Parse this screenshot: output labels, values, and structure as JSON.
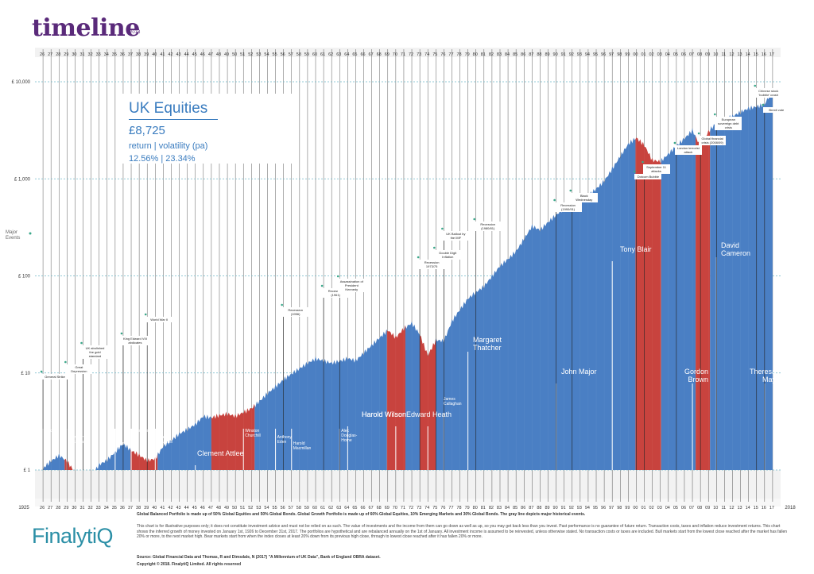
{
  "header": {
    "logo": "timeline",
    "logo_year": "2018"
  },
  "info": {
    "title": "UK Equities",
    "amount": "£8,725",
    "subtitle": "return | volatility (pa)",
    "values": "12.56% | 23.34%"
  },
  "major_events_label": "Major Events",
  "colors": {
    "bull": "#4a7fc4",
    "bear": "#c8433e",
    "grid": "#6fb8c8",
    "event": "#3aa88a"
  },
  "chart_data": {
    "type": "area",
    "title": "UK Equities",
    "xlabel": "",
    "ylabel": "",
    "yscale": "log",
    "ylim": [
      1,
      10000
    ],
    "xlim": [
      1925,
      2018
    ],
    "ytick_labels": [
      "£ 1",
      "£ 10",
      "£ 100",
      "£ 1,000",
      "£ 10,000"
    ],
    "ytick_values": [
      1,
      10,
      100,
      1000,
      10000
    ],
    "xtick_labels": [
      "26",
      "27",
      "28",
      "29",
      "30",
      "31",
      "32",
      "33",
      "34",
      "35",
      "36",
      "37",
      "38",
      "39",
      "40",
      "41",
      "42",
      "43",
      "44",
      "45",
      "46",
      "47",
      "48",
      "49",
      "50",
      "51",
      "52",
      "53",
      "54",
      "55",
      "56",
      "57",
      "58",
      "59",
      "60",
      "61",
      "62",
      "63",
      "64",
      "65",
      "66",
      "67",
      "68",
      "69",
      "70",
      "71",
      "72",
      "73",
      "74",
      "75",
      "76",
      "77",
      "78",
      "79",
      "80",
      "81",
      "82",
      "83",
      "84",
      "85",
      "86",
      "87",
      "88",
      "89",
      "90",
      "91",
      "92",
      "93",
      "94",
      "95",
      "96",
      "97",
      "98",
      "99",
      "00",
      "01",
      "02",
      "03",
      "04",
      "05",
      "06",
      "07",
      "08",
      "09",
      "10",
      "11",
      "12",
      "13",
      "14",
      "15",
      "16",
      "17"
    ],
    "bottom_start_label": "1925",
    "bottom_end_label": "2018",
    "x": [
      1926,
      1928,
      1929,
      1930,
      1931,
      1932,
      1933,
      1934,
      1936,
      1937,
      1939,
      1940,
      1941,
      1943,
      1945,
      1946,
      1947,
      1949,
      1950,
      1952,
      1954,
      1956,
      1958,
      1960,
      1962,
      1964,
      1965,
      1968,
      1969,
      1970,
      1971,
      1972,
      1973,
      1974,
      1975,
      1976,
      1977,
      1979,
      1981,
      1983,
      1985,
      1987,
      1988,
      1990,
      1992,
      1994,
      1996,
      1998,
      1999,
      2000,
      2001,
      2002,
      2003,
      2005,
      2007,
      2008,
      2009,
      2010,
      2012,
      2014,
      2016,
      2017
    ],
    "y": [
      1.0,
      1.35,
      1.2,
      0.95,
      0.85,
      0.9,
      1.2,
      1.3,
      1.8,
      1.5,
      1.2,
      1.3,
      1.8,
      2.5,
      3.0,
      3.5,
      3.3,
      3.6,
      3.5,
      4.5,
      6.5,
      8.5,
      10.5,
      13.5,
      13,
      15,
      14,
      22,
      26,
      22,
      28,
      33,
      26,
      16,
      23,
      22,
      34,
      55,
      75,
      130,
      190,
      330,
      290,
      400,
      560,
      700,
      1000,
      1700,
      2200,
      2500,
      2100,
      1500,
      1500,
      2300,
      3300,
      2200,
      3000,
      3600,
      4200,
      5400,
      6200,
      8725
    ],
    "periods": [
      {
        "start": 1925.0,
        "end": 1928.7,
        "type": "bull"
      },
      {
        "start": 1928.7,
        "end": 1931.8,
        "type": "bear"
      },
      {
        "start": 1931.8,
        "end": 1936.9,
        "type": "bull"
      },
      {
        "start": 1936.9,
        "end": 1940.3,
        "type": "bear"
      },
      {
        "start": 1940.3,
        "end": 1947.0,
        "type": "bull"
      },
      {
        "start": 1947.0,
        "end": 1952.4,
        "type": "bear"
      },
      {
        "start": 1952.4,
        "end": 1968.9,
        "type": "bull"
      },
      {
        "start": 1968.9,
        "end": 1971.2,
        "type": "bear"
      },
      {
        "start": 1971.2,
        "end": 1973.0,
        "type": "bull"
      },
      {
        "start": 1973.0,
        "end": 1975.0,
        "type": "bear"
      },
      {
        "start": 1975.0,
        "end": 1999.9,
        "type": "bull"
      },
      {
        "start": 1999.9,
        "end": 2003.1,
        "type": "bear"
      },
      {
        "start": 2003.1,
        "end": 2007.4,
        "type": "bull"
      },
      {
        "start": 2007.4,
        "end": 2009.2,
        "type": "bear"
      },
      {
        "start": 2009.2,
        "end": 2018.0,
        "type": "bull"
      }
    ]
  },
  "prime_ministers": [
    {
      "name": "Baldwin",
      "year": 1926
    },
    {
      "name": "Ramsay MacDonald",
      "year": 1929
    },
    {
      "name": "Baldwin",
      "year": 1935
    },
    {
      "name": "Chamberlain",
      "year": 1937
    },
    {
      "name": "Winston Churchill",
      "year": 1940
    },
    {
      "name": "Clement Attlee",
      "year": 1945
    },
    {
      "name": "Winston Churchill",
      "year": 1951
    },
    {
      "name": "Anthony Eden",
      "year": 1955
    },
    {
      "name": "Harold Macmillan",
      "year": 1957
    },
    {
      "name": "Alec Douglas-Home",
      "year": 1963
    },
    {
      "name": "Harold Wilson",
      "year": 1964
    },
    {
      "name": "Edward Heath",
      "year": 1970
    },
    {
      "name": "Harold Wilson",
      "year": 1974
    },
    {
      "name": "James Callaghan",
      "year": 1976
    },
    {
      "name": "Margaret Thatcher",
      "year": 1979
    },
    {
      "name": "John Major",
      "year": 1990
    },
    {
      "name": "Tony Blair",
      "year": 1997
    },
    {
      "name": "Gordon Brown",
      "year": 2007
    },
    {
      "name": "David Cameron",
      "year": 2010
    },
    {
      "name": "Theresa May",
      "year": 2016
    }
  ],
  "events": [
    {
      "label": "General Strike",
      "year": 1926
    },
    {
      "label": "Great Depression",
      "year": 1929
    },
    {
      "label": "UK abolished the gold standard",
      "year": 1931
    },
    {
      "label": "King Edward VIII abdicates",
      "year": 1936
    },
    {
      "label": "World War II",
      "year": 1939
    },
    {
      "label": "Recession (1956)",
      "year": 1956
    },
    {
      "label": "Recession (1961)",
      "year": 1961
    },
    {
      "label": "Assassination of President Kennedy",
      "year": 1963
    },
    {
      "label": "Recession 1973/75",
      "year": 1973
    },
    {
      "label": "Double Digit Inflation",
      "year": 1975
    },
    {
      "label": "UK Bailout by the IMF",
      "year": 1976
    },
    {
      "label": "Recession (1980/81)",
      "year": 1980
    },
    {
      "label": "Recession (1990/91)",
      "year": 1990
    },
    {
      "label": "Black Wednesday",
      "year": 1992
    },
    {
      "label": "Dotcom Bubble",
      "year": 2000
    },
    {
      "label": "September 11 attacks",
      "year": 2001
    },
    {
      "label": "London terrorist attack",
      "year": 2005
    },
    {
      "label": "Global financial crisis (2008/09)",
      "year": 2008
    },
    {
      "label": "European sovereign debt crisis",
      "year": 2010
    },
    {
      "label": "Brexit vote",
      "year": 2016
    },
    {
      "label": "Chinese stock 'bubble' crash",
      "year": 2015
    }
  ],
  "footer": {
    "line1": "Global Balanced Portfolio is made up of 50% Global Equities and 50% Global Bonds. Global Growth Portfolio is made up of 60% Global Equities, 10% Emerging Markets and 30% Global Bonds. The gray line depicts major historical events.",
    "disclaimer": "This chart is for illustrative purposes only; it does not constitute investment advice and must not be relied on as such. The value of investments and the income from them can go down as well as up, so you may get back less than you invest. Past performance is no guarantee of future return. Transaction costs, taxes and inflation reduce investment returns. This chart shows the inferred growth of money invested on January 1st, 1926 to December 31st, 2017. The portfolios are hypothetical and are rebalanced annually on the 1st of January. All investment income is assumed to be reinvested, unless otherwise stated. No transaction costs or taxes are included. Bull markets start from the lowest close reached after the market has fallen 20% or more, to the next market high. Bear markets start from when the index closes at least 20% down from its previous high close, through to lowest close reached after it has fallen 20% or more.",
    "source": "Source: Global Financial Data and Thomas, R and Dimsdale, N (2017) \"A Millennium of UK Data\", Bank of England OBRA dataset.",
    "copyright": "Copyright © 2018. FinalytiQ Limited. All rights reserved",
    "brand": "FinalytiQ"
  }
}
